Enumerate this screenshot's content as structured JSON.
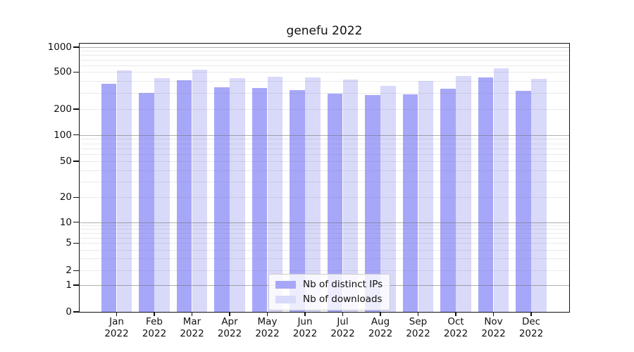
{
  "title": "genefu 2022",
  "y_axis": {
    "tick_values": [
      1000,
      500,
      200,
      100,
      50,
      20,
      10,
      5,
      2,
      1,
      0
    ],
    "tick_labels": [
      "1000",
      "500",
      "200",
      "100",
      "50",
      "20",
      "10",
      "5",
      "2",
      "1",
      "0"
    ]
  },
  "x_axis": {
    "year": "2022",
    "months": [
      "Jan",
      "Feb",
      "Mar",
      "Apr",
      "May",
      "Jun",
      "Jul",
      "Aug",
      "Sep",
      "Oct",
      "Nov",
      "Dec"
    ]
  },
  "legend": {
    "items": [
      {
        "label": "Nb of distinct IPs",
        "color": "#a7a7fa"
      },
      {
        "label": "Nb of downloads",
        "color": "#d9d9fa"
      }
    ]
  },
  "chart_data": {
    "type": "bar",
    "title": "genefu 2022",
    "categories": [
      "Jan 2022",
      "Feb 2022",
      "Mar 2022",
      "Apr 2022",
      "May 2022",
      "Jun 2022",
      "Jul 2022",
      "Aug 2022",
      "Sep 2022",
      "Oct 2022",
      "Nov 2022",
      "Dec 2022"
    ],
    "series": [
      {
        "name": "Nb of distinct IPs",
        "color": "#a7a7fa",
        "values": [
          375,
          300,
          410,
          345,
          335,
          320,
          295,
          285,
          290,
          330,
          435,
          315
        ]
      },
      {
        "name": "Nb of downloads",
        "color": "#d9d9fa",
        "values": [
          525,
          430,
          530,
          430,
          445,
          435,
          415,
          355,
          400,
          450,
          560,
          425
        ]
      }
    ],
    "yscale": "log-like with 0 baseline (symlog)",
    "y_ticks": [
      1000,
      500,
      200,
      100,
      50,
      20,
      10,
      5,
      2,
      1,
      0
    ],
    "ylim": [
      0,
      1000
    ],
    "grid": "horizontal major (1,10,100,1000) + faint minor log lines",
    "legend_position": "inside plot, lower center-left"
  }
}
